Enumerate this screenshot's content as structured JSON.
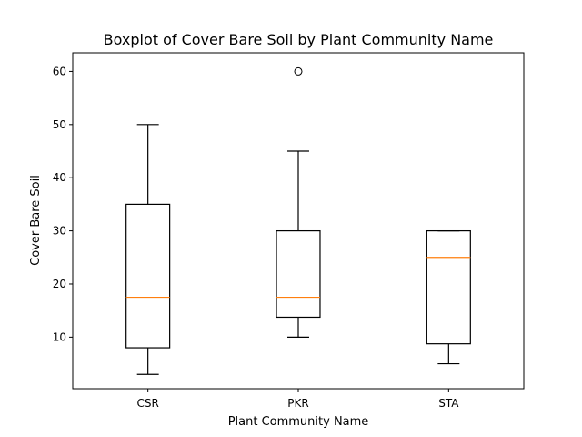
{
  "chart_data": {
    "type": "box",
    "title": "Boxplot of Cover Bare Soil by Plant Community Name",
    "xlabel": "Plant Community Name",
    "ylabel": "Cover Bare Soil",
    "categories": [
      "CSR",
      "PKR",
      "STA"
    ],
    "ylim": [
      0.3,
      63.5
    ],
    "yticks": [
      10,
      20,
      30,
      40,
      50,
      60
    ],
    "grid": false,
    "boxes": [
      {
        "category": "CSR",
        "whisker_low": 3,
        "q1": 8,
        "median": 17.5,
        "q3": 35,
        "whisker_high": 50,
        "outliers": []
      },
      {
        "category": "PKR",
        "whisker_low": 10,
        "q1": 13.75,
        "median": 17.5,
        "q3": 30,
        "whisker_high": 45,
        "outliers": [
          60
        ]
      },
      {
        "category": "STA",
        "whisker_low": 5,
        "q1": 8.75,
        "median": 25,
        "q3": 30,
        "whisker_high": 30,
        "outliers": []
      }
    ],
    "colors": {
      "box": "#000000",
      "median": "#ff7f0e",
      "outlier": "#000000"
    }
  }
}
